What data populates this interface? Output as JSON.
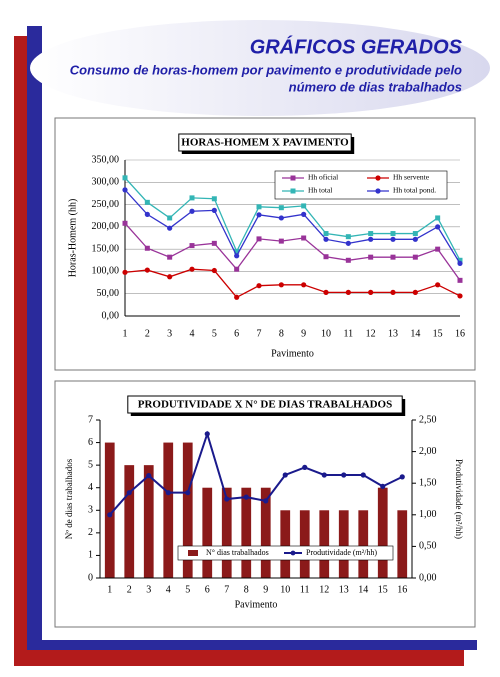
{
  "header": {
    "title": "GRÁFICOS GERADOS",
    "subtitle": [
      "Consumo de horas-homem por pavimento e produtividade pelo",
      "número de dias trabalhados"
    ]
  },
  "chart_data": [
    {
      "type": "line",
      "title": "HORAS-HOMEM X PAVIMENTO",
      "x_label": "Pavimento",
      "y_label": "Horas-Homem (hh)",
      "categories": [
        "1",
        "2",
        "3",
        "4",
        "5",
        "6",
        "7",
        "8",
        "9",
        "10",
        "11",
        "12",
        "13",
        "14",
        "15",
        "16"
      ],
      "ylim": [
        0,
        350
      ],
      "yticks": [
        {
          "value": 0,
          "label": "0,00"
        },
        {
          "value": 50,
          "label": "50,00"
        },
        {
          "value": 100,
          "label": "100,00"
        },
        {
          "value": 150,
          "label": "150,00"
        },
        {
          "value": 200,
          "label": "200,00"
        },
        {
          "value": 250,
          "label": "250,00"
        },
        {
          "value": 300,
          "label": "300,00"
        },
        {
          "value": 350,
          "label": "350,00"
        }
      ],
      "grid": true,
      "legend": "upper right",
      "series": [
        {
          "name": "Hh oficial",
          "color": "#993399",
          "marker": "square",
          "values": [
            208,
            152,
            132,
            158,
            163,
            105,
            173,
            168,
            175,
            133,
            125,
            132,
            132,
            132,
            150,
            80
          ]
        },
        {
          "name": "Hh servente",
          "color": "#cc0000",
          "marker": "circle",
          "values": [
            98,
            103,
            88,
            105,
            102,
            42,
            68,
            70,
            70,
            53,
            53,
            53,
            53,
            53,
            70,
            45
          ]
        },
        {
          "name": "Hh total",
          "color": "#33b5b5",
          "marker": "square",
          "values": [
            310,
            255,
            220,
            265,
            263,
            145,
            245,
            243,
            247,
            185,
            178,
            185,
            185,
            185,
            220,
            125
          ]
        },
        {
          "name": "Hh total pond.",
          "color": "#3333cc",
          "marker": "circle",
          "values": [
            283,
            228,
            197,
            235,
            237,
            135,
            227,
            220,
            228,
            172,
            163,
            172,
            172,
            172,
            200,
            118
          ]
        }
      ]
    },
    {
      "type": "bar-line",
      "title": "PRODUTIVIDADE X N° DE DIAS TRABALHADOS",
      "x_label": "Pavimento",
      "y_label": "Nº de dias trabalhados",
      "y2_label": "Produtividade (m²/hh)",
      "categories": [
        "1",
        "2",
        "3",
        "4",
        "5",
        "6",
        "7",
        "8",
        "9",
        "10",
        "11",
        "12",
        "13",
        "14",
        "15",
        "16"
      ],
      "ylim": [
        0,
        7
      ],
      "yticks": [
        0,
        1,
        2,
        3,
        4,
        5,
        6,
        7
      ],
      "y2lim": [
        0,
        2.5
      ],
      "y2ticks": [
        {
          "value": 0,
          "label": "0,00"
        },
        {
          "value": 0.5,
          "label": "0,50"
        },
        {
          "value": 1,
          "label": "1,00"
        },
        {
          "value": 1.5,
          "label": "1,50"
        },
        {
          "value": 2,
          "label": "2,00"
        },
        {
          "value": 2.5,
          "label": "2,50"
        }
      ],
      "legend": "lower center",
      "series": [
        {
          "name": "N° dias trabalhados",
          "color": "#8b1a1a",
          "values": [
            6,
            5,
            5,
            6,
            6,
            4,
            4,
            4,
            4,
            3,
            3,
            3,
            3,
            3,
            4,
            3
          ]
        },
        {
          "name": "Produtividade (m²/hh)",
          "color": "#1a1a8c",
          "axis": "y2",
          "values": [
            1.0,
            1.35,
            1.62,
            1.35,
            1.35,
            2.28,
            1.25,
            1.28,
            1.22,
            1.63,
            1.75,
            1.63,
            1.63,
            1.63,
            1.45,
            1.6
          ]
        }
      ]
    }
  ]
}
